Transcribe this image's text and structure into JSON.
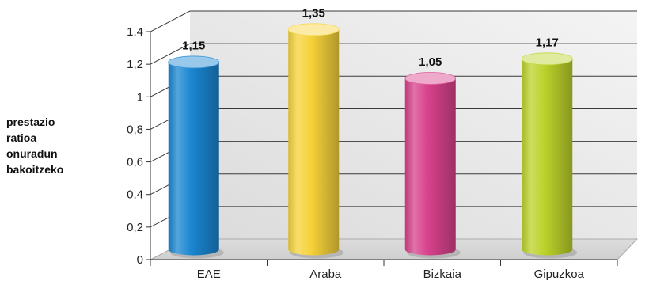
{
  "chart_data": {
    "type": "bar",
    "title": "",
    "xlabel": "",
    "ylabel": "prestazio ratioa onuradun bakoitzeko",
    "ylabel_lines": [
      "prestazio",
      "ratioa",
      "onuradun",
      "bakoitzeko"
    ],
    "categories": [
      "EAE",
      "Araba",
      "Bizkaia",
      "Gipuzkoa"
    ],
    "values": [
      1.15,
      1.35,
      1.05,
      1.17
    ],
    "value_labels": [
      "1,15",
      "1,35",
      "1,05",
      "1,17"
    ],
    "ylim": [
      0,
      1.4
    ],
    "yticks": [
      0,
      0.2,
      0.4,
      0.6,
      0.8,
      1,
      1.2,
      1.4
    ],
    "ytick_labels": [
      "0",
      "0,2",
      "0,4",
      "0,6",
      "0,8",
      "1",
      "1,2",
      "1,4"
    ],
    "grid": true,
    "style": "3d-cylinder",
    "colors": [
      "#1a86d0",
      "#f6d23a",
      "#d8428c",
      "#bcd22a"
    ]
  }
}
